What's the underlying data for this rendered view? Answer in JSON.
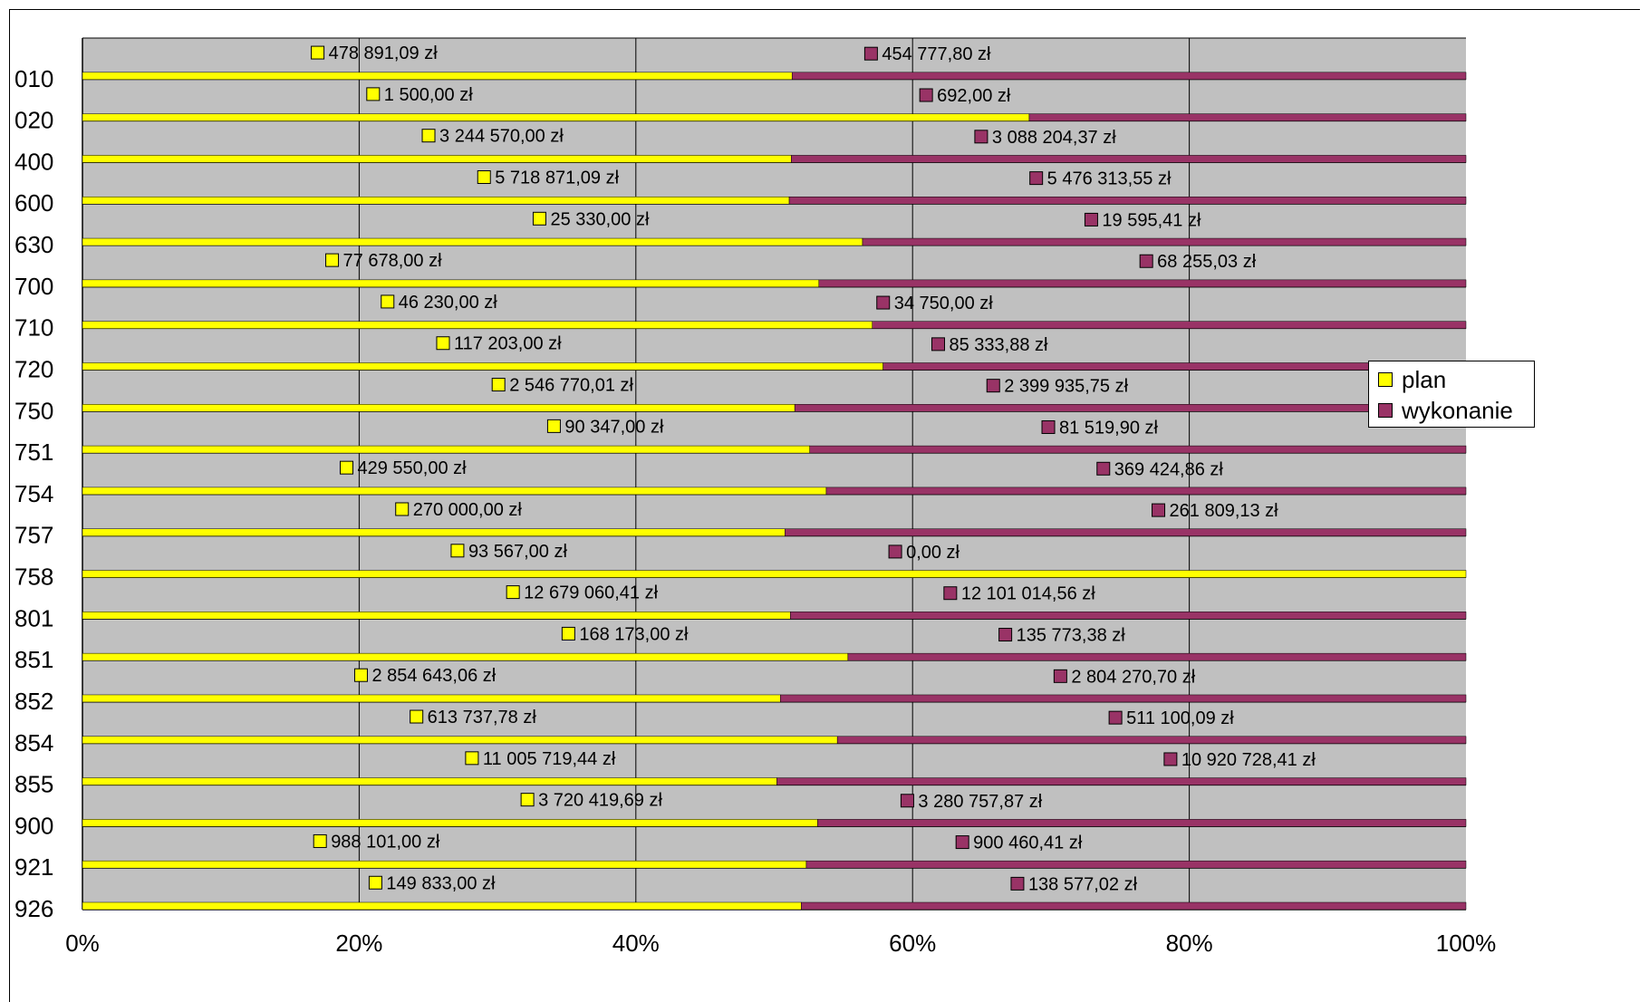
{
  "chart_data": {
    "type": "bar",
    "orientation": "horizontal",
    "stacking": "percent",
    "categories": [
      "010",
      "020",
      "400",
      "600",
      "630",
      "700",
      "710",
      "720",
      "750",
      "751",
      "754",
      "757",
      "758",
      "801",
      "851",
      "852",
      "854",
      "855",
      "900",
      "921",
      "926"
    ],
    "series": [
      {
        "name": "plan",
        "color": "#ffff00",
        "values": [
          478891.09,
          1500.0,
          3244570.0,
          5718871.09,
          25330.0,
          77678.0,
          46230.0,
          117203.0,
          2546770.01,
          90347.0,
          429550.0,
          270000.0,
          93567.0,
          12679060.41,
          168173.0,
          2854643.06,
          613737.78,
          11005719.44,
          3720419.69,
          988101.0,
          149833.0
        ],
        "labels": [
          "478 891,09 zł",
          "1 500,00 zł",
          "3 244 570,00 zł",
          "5 718 871,09 zł",
          "25 330,00 zł",
          "77 678,00 zł",
          "46 230,00 zł",
          "117 203,00 zł",
          "2 546 770,01 zł",
          "90 347,00 zł",
          "429 550,00 zł",
          "270 000,00 zł",
          "93 567,00 zł",
          "12 679 060,41 zł",
          "168 173,00 zł",
          "2 854 643,06 zł",
          "613 737,78 zł",
          "11 005 719,44 zł",
          "3 720 419,69 zł",
          "988 101,00 zł",
          "149 833,00 zł"
        ]
      },
      {
        "name": "wykonanie",
        "color": "#993366",
        "values": [
          454777.8,
          692.0,
          3088204.37,
          5476313.55,
          19595.41,
          68255.03,
          34750.0,
          85333.88,
          2399935.75,
          81519.9,
          369424.86,
          261809.13,
          0.0,
          12101014.56,
          135773.38,
          2804270.7,
          511100.09,
          10920728.41,
          3280757.87,
          900460.41,
          138577.02
        ],
        "labels": [
          "454 777,80 zł",
          "692,00 zł",
          "3 088 204,37 zł",
          "5 476 313,55 zł",
          "19 595,41 zł",
          "68 255,03 zł",
          "34 750,00 zł",
          "85 333,88 zł",
          "2 399 935,75 zł",
          "81 519,90 zł",
          "369 424,86 zł",
          "261 809,13 zł",
          "0,00 zł",
          "12 101 014,56 zł",
          "135 773,38 zł",
          "2 804 270,70 zł",
          "511 100,09 zł",
          "10 920 728,41 zł",
          "3 280 757,87 zł",
          "900 460,41 zł",
          "138 577,02 zł"
        ]
      }
    ],
    "x_ticks": [
      "0%",
      "20%",
      "40%",
      "60%",
      "80%",
      "100%"
    ],
    "xlim": [
      0,
      100
    ],
    "grid": true,
    "plot_background": "#c0c0c0",
    "legend_position": "right"
  },
  "legend": {
    "items": [
      {
        "label": "plan",
        "color": "#ffff00"
      },
      {
        "label": "wykonanie",
        "color": "#993366"
      }
    ]
  }
}
